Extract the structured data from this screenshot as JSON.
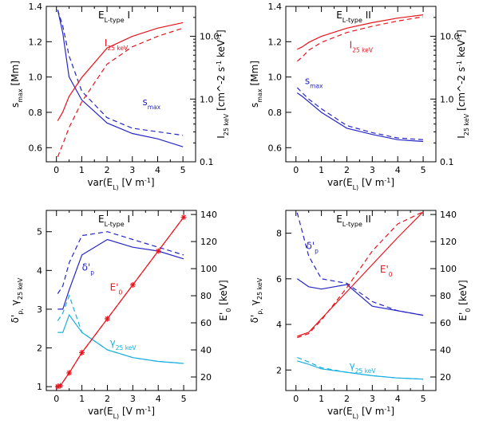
{
  "colors": {
    "red": "#e8141e",
    "blue": "#2626c8",
    "cyan": "#1ab0e0",
    "axis": "#000000"
  },
  "chart_data": [
    {
      "type": "line",
      "title": "E_L-type I",
      "xlabel": "var(E_L) [V m^-1]",
      "ylabel": "s_max [Mm]",
      "y2label": "I_25 keV [cm^-2 s^-1 keV^-1]",
      "xlim": [
        -0.4,
        5.5
      ],
      "xticks": [
        0,
        1,
        2,
        3,
        4,
        5
      ],
      "ylim": [
        0.52,
        1.4
      ],
      "yticks": [
        0.6,
        0.8,
        1.0,
        1.2,
        1.4
      ],
      "ytick_labels": [
        "0.6",
        "0.8",
        "1.0",
        "1.2",
        "1.4"
      ],
      "y2lim": [
        0.1,
        30
      ],
      "y2scale": "log",
      "y2ticks": [
        0.1,
        1.0,
        10.0
      ],
      "y2tick_labels": [
        "0.1",
        "1.0",
        "10.0"
      ],
      "annotations": [
        {
          "text": "I_25 keV",
          "color": "red",
          "at": [
            1.9,
            7.0
          ],
          "axis": "y2"
        },
        {
          "text": "s_max",
          "color": "blue",
          "at": [
            3.4,
            0.84
          ],
          "axis": "y"
        }
      ],
      "series": [
        {
          "name": "s_max",
          "color": "blue",
          "dash": false,
          "axis": "y",
          "x": [
            0.05,
            0.25,
            0.5,
            1,
            2,
            3,
            4,
            5
          ],
          "values": [
            1.38,
            1.25,
            1.0,
            0.87,
            0.74,
            0.68,
            0.65,
            0.605
          ]
        },
        {
          "name": "s_max (dashed)",
          "color": "blue",
          "dash": true,
          "axis": "y",
          "x": [
            0.05,
            0.25,
            0.5,
            1,
            2,
            3,
            4,
            5
          ],
          "values": [
            1.38,
            1.29,
            1.12,
            0.92,
            0.77,
            0.71,
            0.69,
            0.67
          ]
        },
        {
          "name": "I_25 keV",
          "color": "red",
          "dash": false,
          "axis": "y2",
          "x": [
            0.05,
            0.25,
            0.5,
            1,
            2,
            3,
            4,
            5
          ],
          "values": [
            0.45,
            0.62,
            1.1,
            2.2,
            6.5,
            10.0,
            13.5,
            16.5
          ]
        },
        {
          "name": "I_25 keV (dashed)",
          "color": "red",
          "dash": true,
          "axis": "y2",
          "x": [
            0.05,
            0.25,
            0.5,
            1,
            2,
            3,
            4,
            5
          ],
          "values": [
            0.12,
            0.19,
            0.35,
            0.9,
            3.6,
            6.8,
            10.0,
            13.5
          ]
        }
      ]
    },
    {
      "type": "line",
      "title": "E_L-type II",
      "xlabel": "var(E_L) [V m^-1]",
      "ylabel": "s_max [Mm]",
      "y2label": "I_25 keV [cm^-2 s^-1 keV^-1]",
      "xlim": [
        -0.4,
        5.5
      ],
      "xticks": [
        0,
        1,
        2,
        3,
        4,
        5
      ],
      "ylim": [
        0.52,
        1.4
      ],
      "yticks": [
        0.6,
        0.8,
        1.0,
        1.2,
        1.4
      ],
      "ytick_labels": [
        "0.6",
        "0.8",
        "1.0",
        "1.2",
        "1.4"
      ],
      "y2lim": [
        0.1,
        30
      ],
      "y2scale": "log",
      "y2ticks": [
        0.1,
        1.0,
        10.0
      ],
      "y2tick_labels": [
        "0.1",
        "1.0",
        "10.0"
      ],
      "annotations": [
        {
          "text": "I_25 keV",
          "color": "red",
          "at": [
            2.1,
            6.5
          ],
          "axis": "y2"
        },
        {
          "text": "s_max",
          "color": "blue",
          "at": [
            0.35,
            0.96
          ],
          "axis": "y"
        }
      ],
      "series": [
        {
          "name": "I_25 keV",
          "color": "red",
          "dash": false,
          "axis": "y2",
          "x": [
            0.05,
            0.25,
            0.5,
            1,
            2,
            3,
            4,
            5
          ],
          "values": [
            6.2,
            6.8,
            8.0,
            10.0,
            13.5,
            16.5,
            19.5,
            22.0
          ]
        },
        {
          "name": "I_25 keV (dashed)",
          "color": "red",
          "dash": true,
          "axis": "y2",
          "x": [
            0.05,
            0.25,
            0.5,
            1,
            2,
            3,
            4,
            5
          ],
          "values": [
            4.0,
            4.7,
            6.0,
            8.0,
            11.5,
            14.5,
            17.5,
            20.5
          ]
        },
        {
          "name": "s_max",
          "color": "blue",
          "dash": false,
          "axis": "y",
          "x": [
            0.05,
            0.25,
            0.5,
            1,
            2,
            3,
            4,
            5
          ],
          "values": [
            0.91,
            0.89,
            0.86,
            0.8,
            0.71,
            0.675,
            0.645,
            0.635
          ]
        },
        {
          "name": "s_max (dashed)",
          "color": "blue",
          "dash": true,
          "axis": "y",
          "x": [
            0.05,
            0.25,
            0.5,
            1,
            2,
            3,
            4,
            5
          ],
          "values": [
            0.94,
            0.91,
            0.875,
            0.82,
            0.725,
            0.685,
            0.655,
            0.645
          ]
        }
      ]
    },
    {
      "type": "line",
      "title": "E_L-type I",
      "xlabel": "var(E_L) [V m^-1]",
      "ylabel": "δ'_p, γ_25 keV",
      "y2label": "E'_0 [keV]",
      "xlim": [
        -0.4,
        5.5
      ],
      "xticks": [
        0,
        1,
        2,
        3,
        4,
        5
      ],
      "ylim": [
        0.9,
        5.55
      ],
      "yticks": [
        1,
        2,
        3,
        4,
        5
      ],
      "ytick_labels": [
        "1",
        "2",
        "3",
        "4",
        "5"
      ],
      "y2lim": [
        10,
        143
      ],
      "y2ticks": [
        20,
        40,
        60,
        80,
        100,
        120,
        140
      ],
      "y2tick_labels": [
        "20",
        "40",
        "60",
        "80",
        "100",
        "120",
        "140"
      ],
      "annotations": [
        {
          "text": "δ'_p",
          "color": "blue",
          "at": [
            1.0,
            4.0
          ],
          "axis": "y"
        },
        {
          "text": "E'_0",
          "color": "red",
          "at": [
            2.1,
            84
          ],
          "axis": "y2"
        },
        {
          "text": "γ_25 keV",
          "color": "cyan",
          "at": [
            2.1,
            2.05
          ],
          "axis": "y"
        }
      ],
      "series": [
        {
          "name": "δ'_p",
          "color": "blue",
          "dash": false,
          "axis": "y",
          "x": [
            0.05,
            0.25,
            0.5,
            1,
            2,
            3,
            4,
            5
          ],
          "values": [
            3.0,
            3.0,
            3.5,
            4.4,
            4.8,
            4.6,
            4.5,
            4.3
          ]
        },
        {
          "name": "δ'_p (dashed)",
          "color": "blue",
          "dash": true,
          "axis": "y",
          "x": [
            0.05,
            0.25,
            0.5,
            1,
            2,
            3,
            4,
            5
          ],
          "values": [
            3.4,
            3.6,
            4.2,
            4.9,
            5.0,
            4.8,
            4.6,
            4.4
          ]
        },
        {
          "name": "γ_25 keV",
          "color": "cyan",
          "dash": false,
          "axis": "y",
          "x": [
            0.05,
            0.25,
            0.5,
            1,
            2,
            3,
            4,
            5
          ],
          "values": [
            2.4,
            2.4,
            2.85,
            2.4,
            1.95,
            1.75,
            1.65,
            1.6
          ]
        },
        {
          "name": "γ_25 keV (dashed)",
          "color": "cyan",
          "dash": true,
          "axis": "y",
          "x": [
            0.05,
            0.25,
            0.5,
            1,
            2,
            3,
            4,
            5
          ],
          "values": [
            2.7,
            2.9,
            3.35,
            2.4,
            1.95,
            1.75,
            1.65,
            1.6
          ]
        },
        {
          "name": "E'_0",
          "color": "red",
          "dash": false,
          "axis": "y2",
          "markers": true,
          "x": [
            0.05,
            0.15,
            0.5,
            1,
            2,
            3,
            4,
            5
          ],
          "values": [
            13,
            13.5,
            23,
            38,
            63,
            88,
            113,
            138
          ]
        },
        {
          "name": "E'_0 (dashed)",
          "color": "red",
          "dash": true,
          "axis": "y2",
          "x": [
            0.05,
            0.15,
            0.5,
            1,
            2,
            3,
            4,
            5
          ],
          "values": [
            13,
            13.5,
            23,
            38,
            63,
            88,
            113,
            138
          ]
        }
      ]
    },
    {
      "type": "line",
      "title": "E_L-type II",
      "xlabel": "var(E_L) [V m^-1]",
      "ylabel": "δ'_p, γ_25 keV",
      "y2label": "E'_0 [keV]",
      "xlim": [
        -0.4,
        5.5
      ],
      "xticks": [
        0,
        1,
        2,
        3,
        4,
        5
      ],
      "ylim": [
        1.1,
        9.0
      ],
      "yticks": [
        2,
        4,
        6,
        8
      ],
      "ytick_labels": [
        "2",
        "4",
        "6",
        "8"
      ],
      "y2lim": [
        10,
        143
      ],
      "y2ticks": [
        20,
        40,
        60,
        80,
        100,
        120,
        140
      ],
      "y2tick_labels": [
        "20",
        "40",
        "60",
        "80",
        "100",
        "120",
        "140"
      ],
      "annotations": [
        {
          "text": "δ'_p",
          "color": "blue",
          "at": [
            0.4,
            7.3
          ],
          "axis": "y"
        },
        {
          "text": "E'_0",
          "color": "red",
          "at": [
            3.3,
            97
          ],
          "axis": "y2"
        },
        {
          "text": "γ_25 keV",
          "color": "cyan",
          "at": [
            2.1,
            2.05
          ],
          "axis": "y"
        }
      ],
      "series": [
        {
          "name": "δ'_p",
          "color": "blue",
          "dash": false,
          "axis": "y",
          "x": [
            0.05,
            0.5,
            1,
            2,
            3,
            4,
            5
          ],
          "values": [
            6.0,
            5.65,
            5.55,
            5.75,
            4.8,
            4.6,
            4.4
          ]
        },
        {
          "name": "δ'_p (dashed)",
          "color": "blue",
          "dash": true,
          "axis": "y",
          "x": [
            0.05,
            0.5,
            1,
            2,
            3,
            4,
            5
          ],
          "values": [
            8.9,
            7.0,
            6.0,
            5.8,
            5.0,
            4.6,
            4.4
          ]
        },
        {
          "name": "γ_25 keV",
          "color": "cyan",
          "dash": false,
          "axis": "y",
          "x": [
            0.05,
            0.5,
            1,
            2,
            3,
            4,
            5
          ],
          "values": [
            2.4,
            2.25,
            2.05,
            1.9,
            1.75,
            1.65,
            1.6
          ]
        },
        {
          "name": "γ_25 keV (dashed)",
          "color": "cyan",
          "dash": true,
          "axis": "y",
          "x": [
            0.05,
            0.5,
            1,
            2,
            3,
            4,
            5
          ],
          "values": [
            2.55,
            2.35,
            2.1,
            1.9,
            1.75,
            1.65,
            1.6
          ]
        },
        {
          "name": "E'_0",
          "color": "red",
          "dash": false,
          "axis": "y2",
          "x": [
            0.05,
            0.5,
            1,
            2,
            3,
            4,
            5
          ],
          "values": [
            50,
            53,
            63,
            83,
            103,
            123,
            142
          ]
        },
        {
          "name": "E'_0 (dashed)",
          "color": "red",
          "dash": true,
          "axis": "y2",
          "x": [
            0.05,
            0.5,
            1,
            2,
            3,
            4,
            5
          ],
          "values": [
            49,
            52,
            62,
            86,
            113,
            133,
            142
          ]
        }
      ]
    }
  ]
}
